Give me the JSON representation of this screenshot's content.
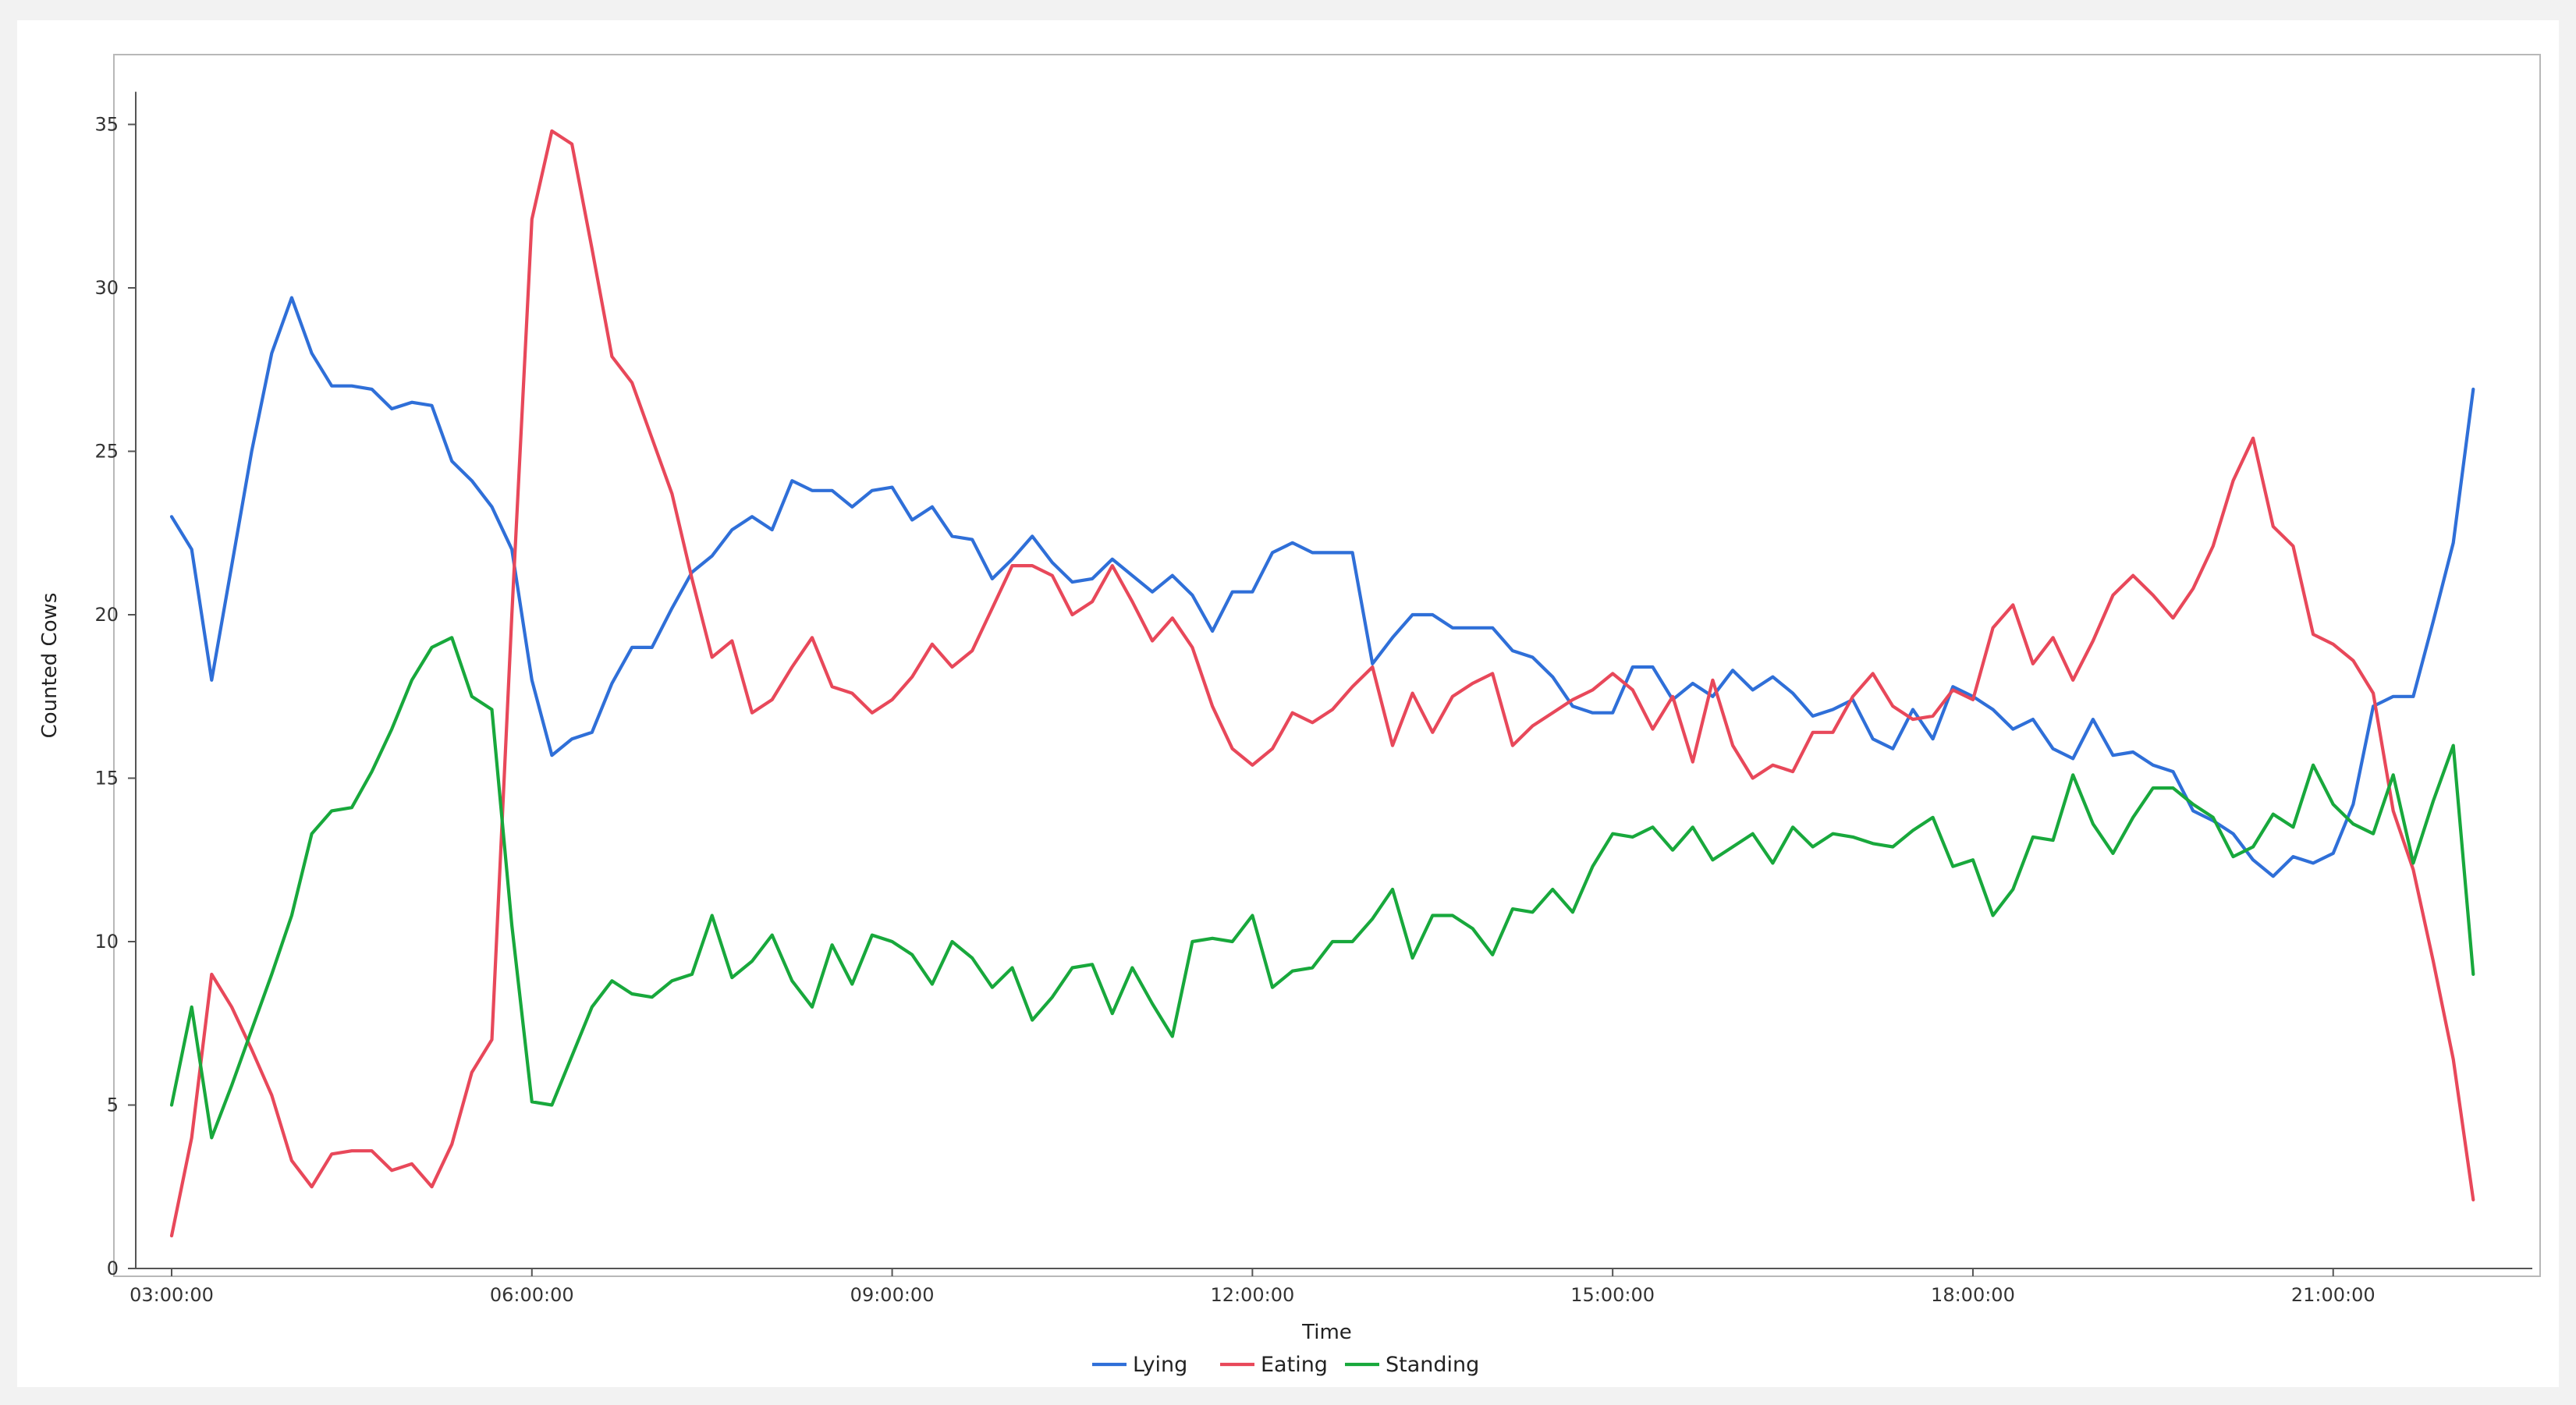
{
  "chart_data": {
    "type": "line",
    "xlabel": "Time",
    "ylabel": "Counted Cows",
    "xlim": [
      "03:00:00",
      "22:30:00"
    ],
    "ylim": [
      0,
      36
    ],
    "x_ticks": [
      "03:00:00",
      "06:00:00",
      "09:00:00",
      "12:00:00",
      "15:00:00",
      "18:00:00",
      "21:00:00"
    ],
    "y_ticks": [
      0,
      5,
      10,
      15,
      20,
      25,
      30,
      35
    ],
    "grid": false,
    "legend_position": "bottom-center",
    "x": [
      "03:00:00",
      "03:10:00",
      "03:20:00",
      "03:30:00",
      "03:40:00",
      "03:50:00",
      "04:00:00",
      "04:10:00",
      "04:20:00",
      "04:30:00",
      "04:40:00",
      "04:50:00",
      "05:00:00",
      "05:10:00",
      "05:20:00",
      "05:30:00",
      "05:40:00",
      "05:50:00",
      "06:00:00",
      "06:10:00",
      "06:20:00",
      "06:30:00",
      "06:40:00",
      "06:50:00",
      "07:00:00",
      "07:10:00",
      "07:20:00",
      "07:30:00",
      "07:40:00",
      "07:50:00",
      "08:00:00",
      "08:10:00",
      "08:20:00",
      "08:30:00",
      "08:40:00",
      "08:50:00",
      "09:00:00",
      "09:10:00",
      "09:20:00",
      "09:30:00",
      "09:40:00",
      "09:50:00",
      "10:00:00",
      "10:10:00",
      "10:20:00",
      "10:30:00",
      "10:40:00",
      "10:50:00",
      "11:00:00",
      "11:10:00",
      "11:20:00",
      "11:30:00",
      "11:40:00",
      "11:50:00",
      "12:00:00",
      "12:10:00",
      "12:20:00",
      "12:30:00",
      "12:40:00",
      "12:50:00",
      "13:00:00",
      "13:10:00",
      "13:20:00",
      "13:30:00",
      "13:40:00",
      "13:50:00",
      "14:00:00",
      "14:10:00",
      "14:20:00",
      "14:30:00",
      "14:40:00",
      "14:50:00",
      "15:00:00",
      "15:10:00",
      "15:20:00",
      "15:30:00",
      "15:40:00",
      "15:50:00",
      "16:00:00",
      "16:10:00",
      "16:20:00",
      "16:30:00",
      "16:40:00",
      "16:50:00",
      "17:00:00",
      "17:10:00",
      "17:20:00",
      "17:30:00",
      "17:40:00",
      "17:50:00",
      "18:00:00",
      "18:10:00",
      "18:20:00",
      "18:30:00",
      "18:40:00",
      "18:50:00",
      "19:00:00",
      "19:10:00",
      "19:20:00",
      "19:30:00",
      "19:40:00",
      "19:50:00",
      "20:00:00",
      "20:10:00",
      "20:20:00",
      "20:30:00",
      "20:40:00",
      "20:50:00",
      "21:00:00",
      "21:10:00",
      "21:20:00",
      "21:30:00",
      "21:40:00",
      "21:50:00",
      "22:00:00",
      "22:10:00"
    ],
    "series": [
      {
        "name": "Lying",
        "color": "#2f6fd8",
        "values": [
          23,
          22,
          18,
          21.5,
          25,
          28,
          29.7,
          28,
          27,
          27,
          26.9,
          26.3,
          26.5,
          26.4,
          24.7,
          24.1,
          23.3,
          22,
          18,
          15.7,
          16.2,
          16.4,
          17.9,
          19,
          19,
          20.2,
          21.3,
          21.8,
          22.6,
          23,
          22.6,
          24.1,
          23.8,
          23.8,
          23.3,
          23.8,
          23.9,
          22.9,
          23.3,
          22.4,
          22.3,
          21.1,
          21.7,
          22.4,
          21.6,
          21,
          21.1,
          21.7,
          21.2,
          20.7,
          21.2,
          20.6,
          19.5,
          20.7,
          20.7,
          21.9,
          22.2,
          21.9,
          21.9,
          21.9,
          18.5,
          19.3,
          20,
          20,
          19.6,
          19.6,
          19.6,
          18.9,
          18.7,
          18.1,
          17.2,
          17,
          17,
          18.4,
          18.4,
          17.4,
          17.9,
          17.5,
          18.3,
          17.7,
          18.1,
          17.6,
          16.9,
          17.1,
          17.4,
          16.2,
          15.9,
          17.1,
          16.2,
          17.8,
          17.5,
          17.1,
          16.5,
          16.8,
          15.9,
          15.6,
          16.8,
          15.7,
          15.8,
          15.4,
          15.2,
          14,
          13.7,
          13.3,
          12.5,
          12,
          12.6,
          12.4,
          12.7,
          14.2,
          17.2,
          17.5,
          17.5,
          19.8,
          22.2,
          26.9
        ]
      },
      {
        "name": "Eating",
        "color": "#e8485a",
        "values": [
          1,
          4,
          9,
          8,
          6.7,
          5.3,
          3.3,
          2.5,
          3.5,
          3.6,
          3.6,
          3,
          3.2,
          2.5,
          3.8,
          6,
          7,
          20,
          32.1,
          34.8,
          34.4,
          31.2,
          27.9,
          27.1,
          25.4,
          23.7,
          21.1,
          18.7,
          19.2,
          17,
          17.4,
          18.4,
          19.3,
          17.8,
          17.6,
          17,
          17.4,
          18.1,
          19.1,
          18.4,
          18.9,
          20.2,
          21.5,
          21.5,
          21.2,
          20,
          20.4,
          21.5,
          20.4,
          19.2,
          19.9,
          19,
          17.2,
          15.9,
          15.4,
          15.9,
          17,
          16.7,
          17.1,
          17.8,
          18.4,
          16,
          17.6,
          16.4,
          17.5,
          17.9,
          18.2,
          16,
          16.6,
          17,
          17.4,
          17.7,
          18.2,
          17.7,
          16.5,
          17.5,
          15.5,
          18,
          16,
          15,
          15.4,
          15.2,
          16.4,
          16.4,
          17.5,
          18.2,
          17.2,
          16.8,
          16.9,
          17.7,
          17.4,
          19.6,
          20.3,
          18.5,
          19.3,
          18,
          19.2,
          20.6,
          21.2,
          20.6,
          19.9,
          20.8,
          22.1,
          24.1,
          25.4,
          22.7,
          22.1,
          19.4,
          19.1,
          18.6,
          17.6,
          14,
          12.2,
          9.4,
          6.4,
          2.1
        ]
      },
      {
        "name": "Standing",
        "color": "#18a83c",
        "values": [
          5,
          8,
          4,
          5.6,
          7.3,
          9,
          10.8,
          13.3,
          14,
          14.1,
          15.2,
          16.5,
          18,
          19,
          19.3,
          17.5,
          17.1,
          10.5,
          5.1,
          5,
          6.5,
          8,
          8.8,
          8.4,
          8.3,
          8.8,
          9,
          10.8,
          8.9,
          9.4,
          10.2,
          8.8,
          8,
          9.9,
          8.7,
          10.2,
          10,
          9.6,
          8.7,
          10,
          9.5,
          8.6,
          9.2,
          7.6,
          8.3,
          9.2,
          9.3,
          7.8,
          9.2,
          8.1,
          7.1,
          10,
          10.1,
          10,
          10.8,
          8.6,
          9.1,
          9.2,
          10,
          10,
          10.7,
          11.6,
          9.5,
          10.8,
          10.8,
          10.4,
          9.6,
          11,
          10.9,
          11.6,
          10.9,
          12.3,
          13.3,
          13.2,
          13.5,
          12.8,
          13.5,
          12.5,
          12.9,
          13.3,
          12.4,
          13.5,
          12.9,
          13.3,
          13.2,
          13,
          12.9,
          13.4,
          13.8,
          12.3,
          12.5,
          10.8,
          11.6,
          13.2,
          13.1,
          15.1,
          13.6,
          12.7,
          13.8,
          14.7,
          14.7,
          14.2,
          13.8,
          12.6,
          12.9,
          13.9,
          13.5,
          15.4,
          14.2,
          13.6,
          13.3,
          15.1,
          12.4,
          14.3,
          16,
          9
        ]
      }
    ]
  }
}
